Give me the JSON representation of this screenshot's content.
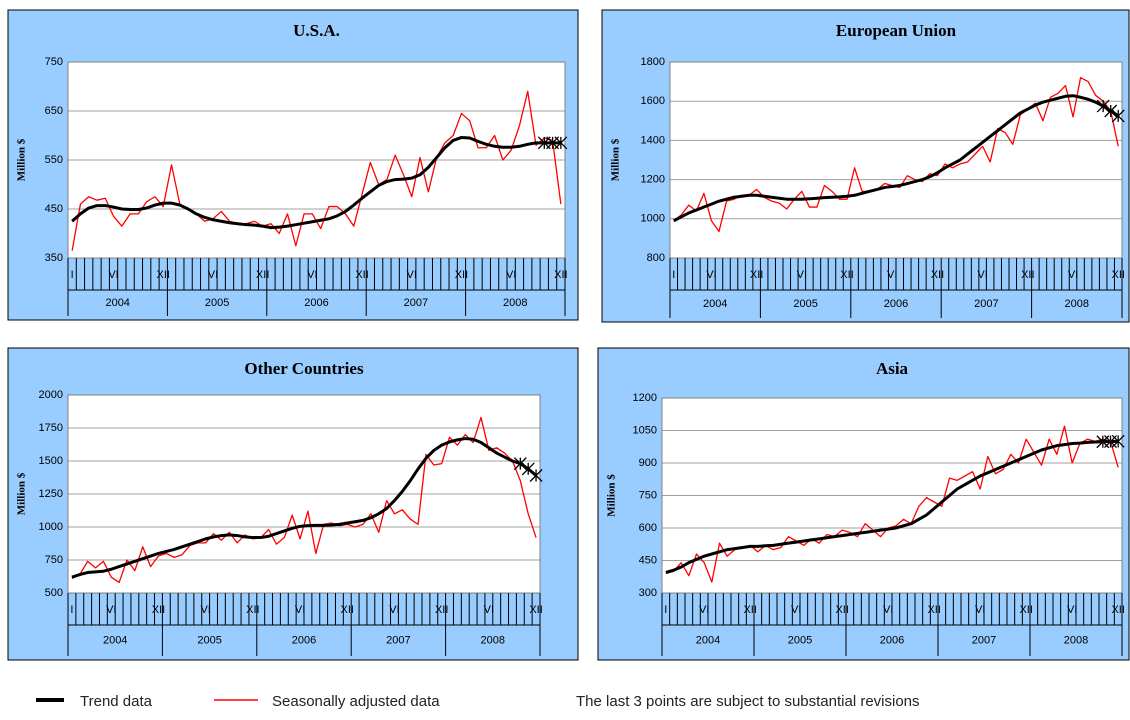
{
  "chart_data": [
    {
      "type": "line",
      "title": "U.S.A.",
      "y_label": "Million $",
      "categories": [
        "I",
        null,
        null,
        null,
        null,
        "VI",
        null,
        null,
        null,
        null,
        null,
        "XII",
        null,
        null,
        null,
        null,
        null,
        "VI",
        null,
        null,
        null,
        null,
        null,
        "XII",
        null,
        null,
        null,
        null,
        null,
        "VI",
        null,
        null,
        null,
        null,
        null,
        "XII",
        null,
        null,
        null,
        null,
        null,
        "VI",
        null,
        null,
        null,
        null,
        null,
        "XII",
        null,
        null,
        null,
        null,
        null,
        "VI",
        null,
        null,
        null,
        null,
        null,
        "XII"
      ],
      "groups": [
        "2004",
        "2005",
        "2006",
        "2007",
        "2008"
      ],
      "ylim": [
        350,
        750
      ],
      "yticks": [
        350,
        450,
        550,
        650,
        750
      ],
      "grid": true,
      "series": [
        {
          "color": "#000000",
          "marker": "x",
          "marked_last": 3,
          "values": [
            425,
            440,
            452,
            457,
            457,
            454,
            450,
            449,
            449,
            452,
            458,
            462,
            462,
            458,
            450,
            440,
            433,
            428,
            425,
            422,
            420,
            418,
            417,
            415,
            412,
            413,
            415,
            418,
            421,
            424,
            427,
            430,
            436,
            445,
            458,
            472,
            485,
            498,
            506,
            510,
            511,
            513,
            520,
            535,
            555,
            575,
            590,
            596,
            595,
            588,
            582,
            578,
            576,
            576,
            578,
            582,
            585,
            585,
            585,
            585
          ]
        },
        {
          "color": "#ff0000",
          "values": [
            365,
            460,
            475,
            468,
            472,
            435,
            415,
            440,
            440,
            465,
            475,
            455,
            540,
            460,
            450,
            440,
            425,
            430,
            445,
            425,
            420,
            420,
            425,
            415,
            420,
            400,
            440,
            375,
            440,
            440,
            410,
            455,
            455,
            440,
            415,
            480,
            545,
            500,
            510,
            560,
            520,
            475,
            555,
            485,
            555,
            585,
            600,
            645,
            630,
            575,
            575,
            600,
            550,
            570,
            620,
            690,
            580,
            595,
            590,
            460
          ]
        }
      ]
    },
    {
      "type": "line",
      "title": "European Union",
      "y_label": "Million $",
      "categories": [
        "I",
        null,
        null,
        null,
        null,
        "VI",
        null,
        null,
        null,
        null,
        null,
        "XII",
        null,
        null,
        null,
        null,
        null,
        "VI",
        null,
        null,
        null,
        null,
        null,
        "XII",
        null,
        null,
        null,
        null,
        null,
        "VI",
        null,
        null,
        null,
        null,
        null,
        "XII",
        null,
        null,
        null,
        null,
        null,
        "VI",
        null,
        null,
        null,
        null,
        null,
        "XII",
        null,
        null,
        null,
        null,
        null,
        "VI",
        null,
        null,
        null,
        null,
        null,
        "XII"
      ],
      "groups": [
        "2004",
        "2005",
        "2006",
        "2007",
        "2008"
      ],
      "ylim": [
        800,
        1800
      ],
      "yticks": [
        800,
        1000,
        1200,
        1400,
        1600,
        1800
      ],
      "grid": true,
      "series": [
        {
          "color": "#000000",
          "marker": "x",
          "marked_last": 3,
          "values": [
            990,
            1010,
            1030,
            1045,
            1060,
            1075,
            1090,
            1100,
            1110,
            1115,
            1120,
            1120,
            1115,
            1110,
            1105,
            1100,
            1100,
            1100,
            1102,
            1105,
            1108,
            1110,
            1112,
            1115,
            1120,
            1130,
            1140,
            1150,
            1160,
            1165,
            1170,
            1180,
            1190,
            1200,
            1215,
            1235,
            1260,
            1280,
            1300,
            1330,
            1360,
            1390,
            1420,
            1450,
            1480,
            1510,
            1540,
            1560,
            1580,
            1595,
            1605,
            1615,
            1625,
            1628,
            1620,
            1610,
            1595,
            1575,
            1550,
            1525
          ]
        },
        {
          "color": "#ff0000",
          "values": [
            990,
            1020,
            1070,
            1040,
            1130,
            990,
            935,
            1090,
            1100,
            1120,
            1120,
            1150,
            1110,
            1090,
            1080,
            1050,
            1100,
            1140,
            1060,
            1060,
            1170,
            1140,
            1100,
            1100,
            1260,
            1140,
            1140,
            1150,
            1180,
            1170,
            1160,
            1220,
            1200,
            1190,
            1230,
            1220,
            1280,
            1260,
            1280,
            1290,
            1330,
            1370,
            1290,
            1460,
            1440,
            1380,
            1530,
            1560,
            1590,
            1500,
            1620,
            1640,
            1680,
            1520,
            1720,
            1700,
            1630,
            1600,
            1550,
            1370
          ]
        }
      ]
    },
    {
      "type": "line",
      "title": "Other Countries",
      "y_label": "Million $",
      "categories": [
        "I",
        null,
        null,
        null,
        null,
        "VI",
        null,
        null,
        null,
        null,
        null,
        "XII",
        null,
        null,
        null,
        null,
        null,
        "VI",
        null,
        null,
        null,
        null,
        null,
        "XII",
        null,
        null,
        null,
        null,
        null,
        "VI",
        null,
        null,
        null,
        null,
        null,
        "XII",
        null,
        null,
        null,
        null,
        null,
        "VI",
        null,
        null,
        null,
        null,
        null,
        "XII",
        null,
        null,
        null,
        null,
        null,
        "VI",
        null,
        null,
        null,
        null,
        null,
        "XII"
      ],
      "groups": [
        "2004",
        "2005",
        "2006",
        "2007",
        "2008"
      ],
      "ylim": [
        500,
        2000
      ],
      "yticks": [
        500,
        750,
        1000,
        1250,
        1500,
        1750,
        2000
      ],
      "grid": true,
      "series": [
        {
          "color": "#000000",
          "marker": "x",
          "marked_last": 3,
          "values": [
            620,
            640,
            655,
            660,
            665,
            680,
            700,
            720,
            740,
            760,
            780,
            800,
            815,
            830,
            850,
            870,
            890,
            910,
            925,
            935,
            940,
            935,
            925,
            920,
            920,
            930,
            950,
            970,
            990,
            1005,
            1010,
            1012,
            1012,
            1015,
            1020,
            1030,
            1040,
            1050,
            1070,
            1100,
            1140,
            1200,
            1270,
            1350,
            1440,
            1520,
            1580,
            1620,
            1645,
            1660,
            1670,
            1665,
            1640,
            1600,
            1560,
            1530,
            1500,
            1480,
            1440,
            1390
          ]
        },
        {
          "color": "#ff0000",
          "values": [
            610,
            640,
            740,
            690,
            740,
            620,
            580,
            750,
            670,
            850,
            700,
            780,
            800,
            770,
            790,
            860,
            880,
            880,
            950,
            900,
            960,
            880,
            940,
            910,
            920,
            980,
            870,
            920,
            1090,
            910,
            1120,
            800,
            1020,
            1030,
            1010,
            1020,
            1000,
            1020,
            1100,
            960,
            1200,
            1100,
            1130,
            1060,
            1020,
            1550,
            1470,
            1480,
            1680,
            1620,
            1700,
            1640,
            1830,
            1580,
            1600,
            1560,
            1500,
            1350,
            1100,
            920
          ]
        }
      ]
    },
    {
      "type": "line",
      "title": "Asia",
      "y_label": "Million $",
      "categories": [
        "I",
        null,
        null,
        null,
        null,
        "VI",
        null,
        null,
        null,
        null,
        null,
        "XII",
        null,
        null,
        null,
        null,
        null,
        "VI",
        null,
        null,
        null,
        null,
        null,
        "XII",
        null,
        null,
        null,
        null,
        null,
        "VI",
        null,
        null,
        null,
        null,
        null,
        "XII",
        null,
        null,
        null,
        null,
        null,
        "VI",
        null,
        null,
        null,
        null,
        null,
        "XII",
        null,
        null,
        null,
        null,
        null,
        "VI",
        null,
        null,
        null,
        null,
        null,
        "XII"
      ],
      "groups": [
        "2004",
        "2005",
        "2006",
        "2007",
        "2008"
      ],
      "ylim": [
        300,
        1200
      ],
      "yticks": [
        300,
        450,
        600,
        750,
        900,
        1050,
        1200
      ],
      "grid": true,
      "series": [
        {
          "color": "#000000",
          "marker": "x",
          "marked_last": 3,
          "values": [
            395,
            405,
            420,
            440,
            455,
            470,
            480,
            490,
            500,
            505,
            510,
            515,
            515,
            518,
            520,
            525,
            530,
            535,
            540,
            545,
            550,
            555,
            560,
            565,
            570,
            575,
            580,
            585,
            590,
            595,
            600,
            610,
            620,
            640,
            660,
            690,
            720,
            750,
            780,
            800,
            820,
            840,
            855,
            870,
            885,
            900,
            915,
            930,
            945,
            960,
            970,
            980,
            985,
            990,
            992,
            995,
            997,
            998,
            999,
            1000
          ]
        },
        {
          "color": "#ff0000",
          "values": [
            390,
            400,
            440,
            380,
            480,
            440,
            350,
            530,
            470,
            500,
            510,
            520,
            490,
            520,
            500,
            510,
            560,
            540,
            520,
            550,
            530,
            570,
            560,
            590,
            580,
            560,
            620,
            590,
            560,
            600,
            610,
            640,
            620,
            700,
            740,
            720,
            700,
            830,
            820,
            840,
            860,
            780,
            930,
            850,
            870,
            940,
            900,
            1010,
            950,
            890,
            1010,
            940,
            1070,
            900,
            990,
            1010,
            1000,
            1010,
            1000,
            880
          ]
        }
      ]
    }
  ],
  "legend": [
    "Trend data",
    "Seasonally adjusted data"
  ],
  "note": "The last 3 points are subject to substantial revisions"
}
